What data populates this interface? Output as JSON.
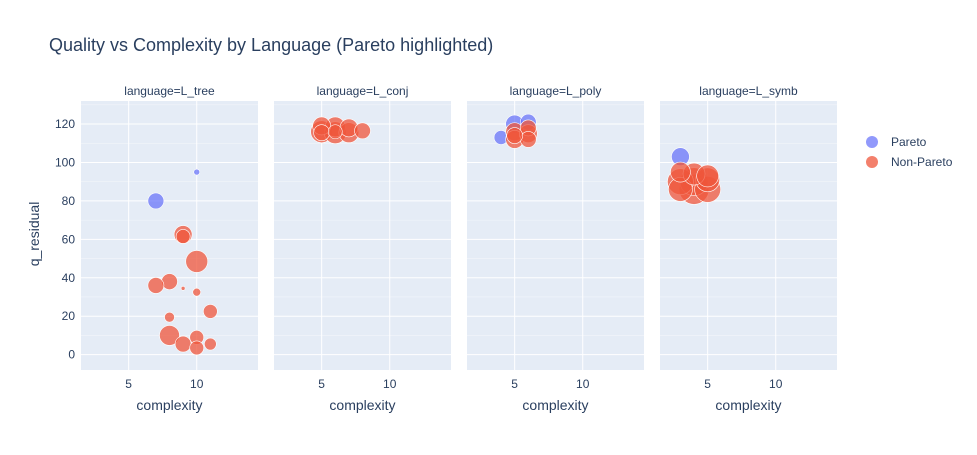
{
  "chart_data": {
    "type": "scatter",
    "title": "Quality vs Complexity by Language (Pareto highlighted)",
    "xlabel": "complexity",
    "ylabel": "q_residual",
    "xlim": [
      1.5,
      14.5
    ],
    "ylim": [
      -8,
      132
    ],
    "x_ticks": [
      5,
      10
    ],
    "y_ticks": [
      0,
      20,
      40,
      60,
      80,
      100,
      120
    ],
    "grid": true,
    "legend_position": "top-right",
    "legend": [
      {
        "name": "Pareto",
        "color": "#636efa"
      },
      {
        "name": "Non-Pareto",
        "color": "#ef553b"
      }
    ],
    "facets": [
      {
        "label": "language=L_tree",
        "points": [
          {
            "x": 10,
            "y": 95,
            "s": 3,
            "pareto": true
          },
          {
            "x": 7,
            "y": 80,
            "s": 8,
            "pareto": true
          },
          {
            "x": 9,
            "y": 62.5,
            "s": 9,
            "pareto": false
          },
          {
            "x": 9,
            "y": 61.5,
            "s": 7,
            "pareto": false
          },
          {
            "x": 10,
            "y": 48.5,
            "s": 11,
            "pareto": false
          },
          {
            "x": 8,
            "y": 38,
            "s": 8,
            "pareto": false
          },
          {
            "x": 7,
            "y": 36,
            "s": 8,
            "pareto": false
          },
          {
            "x": 9,
            "y": 34.5,
            "s": 2,
            "pareto": false
          },
          {
            "x": 10,
            "y": 32.5,
            "s": 4,
            "pareto": false
          },
          {
            "x": 11,
            "y": 22.5,
            "s": 7,
            "pareto": false
          },
          {
            "x": 8,
            "y": 19.5,
            "s": 5,
            "pareto": false
          },
          {
            "x": 8,
            "y": 10,
            "s": 10,
            "pareto": false
          },
          {
            "x": 10,
            "y": 9,
            "s": 7,
            "pareto": false
          },
          {
            "x": 9,
            "y": 5.5,
            "s": 8,
            "pareto": false
          },
          {
            "x": 11,
            "y": 5.5,
            "s": 6,
            "pareto": false
          },
          {
            "x": 10,
            "y": 3.5,
            "s": 7,
            "pareto": false
          }
        ]
      },
      {
        "label": "language=L_conj",
        "points": [
          {
            "x": 5,
            "y": 119,
            "s": 9,
            "pareto": false
          },
          {
            "x": 6,
            "y": 118.5,
            "s": 10,
            "pareto": false
          },
          {
            "x": 7,
            "y": 118,
            "s": 9,
            "pareto": false
          },
          {
            "x": 5,
            "y": 116,
            "s": 11,
            "pareto": false
          },
          {
            "x": 6,
            "y": 115.5,
            "s": 11,
            "pareto": false
          },
          {
            "x": 7,
            "y": 115.5,
            "s": 10,
            "pareto": false
          },
          {
            "x": 8,
            "y": 116.5,
            "s": 8,
            "pareto": false
          },
          {
            "x": 5,
            "y": 115.5,
            "s": 8,
            "pareto": false
          },
          {
            "x": 6,
            "y": 116,
            "s": 7,
            "pareto": false
          }
        ]
      },
      {
        "label": "language=L_poly",
        "points": [
          {
            "x": 4,
            "y": 113,
            "s": 7,
            "pareto": true
          },
          {
            "x": 5,
            "y": 120,
            "s": 9,
            "pareto": true
          },
          {
            "x": 6,
            "y": 121,
            "s": 8,
            "pareto": true
          },
          {
            "x": 5,
            "y": 116,
            "s": 9,
            "pareto": false
          },
          {
            "x": 6,
            "y": 118,
            "s": 8,
            "pareto": false
          },
          {
            "x": 5,
            "y": 112,
            "s": 9,
            "pareto": false
          },
          {
            "x": 6,
            "y": 115,
            "s": 9,
            "pareto": false
          },
          {
            "x": 6,
            "y": 112,
            "s": 8,
            "pareto": false
          },
          {
            "x": 5,
            "y": 114,
            "s": 8,
            "pareto": false
          }
        ]
      },
      {
        "label": "language=L_symb",
        "points": [
          {
            "x": 3,
            "y": 103,
            "s": 9,
            "pareto": true
          },
          {
            "x": 3,
            "y": 95,
            "s": 10,
            "pareto": false
          },
          {
            "x": 4,
            "y": 94,
            "s": 11,
            "pareto": false
          },
          {
            "x": 5,
            "y": 93,
            "s": 11,
            "pareto": false
          },
          {
            "x": 3,
            "y": 90,
            "s": 13,
            "pareto": false
          },
          {
            "x": 4,
            "y": 90,
            "s": 14,
            "pareto": false
          },
          {
            "x": 5,
            "y": 91,
            "s": 12,
            "pareto": false
          },
          {
            "x": 3,
            "y": 86,
            "s": 12,
            "pareto": false
          },
          {
            "x": 4,
            "y": 86,
            "s": 15,
            "pareto": false
          },
          {
            "x": 5,
            "y": 86,
            "s": 13,
            "pareto": false
          }
        ]
      }
    ]
  }
}
